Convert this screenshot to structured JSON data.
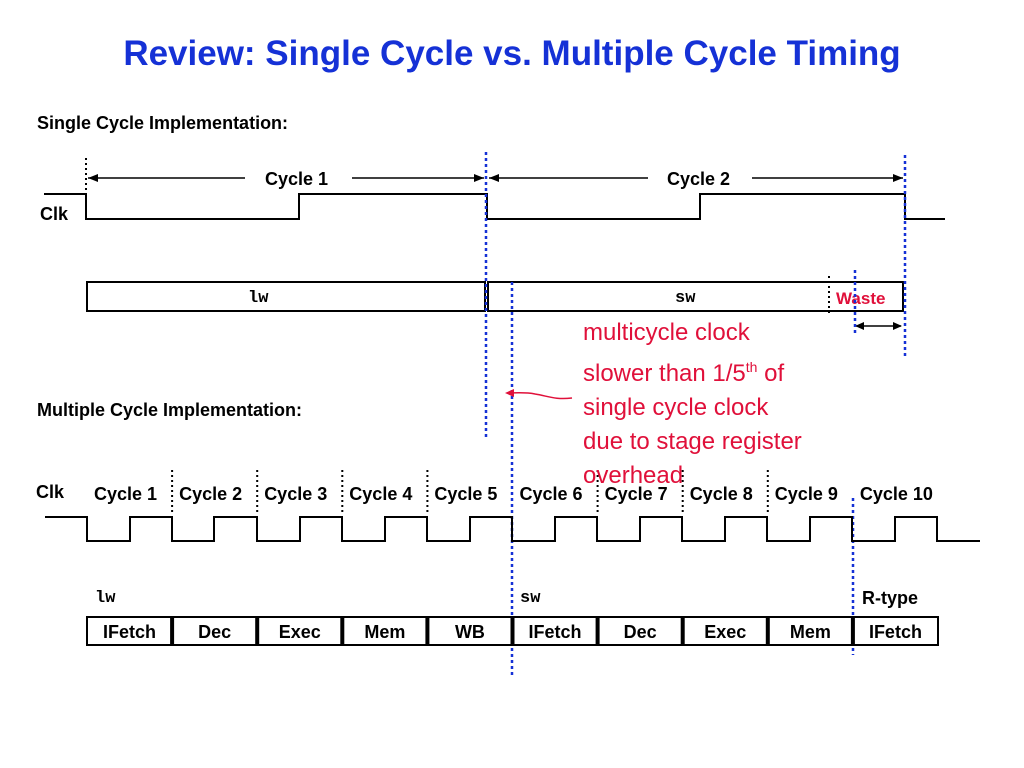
{
  "title": "Review:  Single Cycle vs. Multiple Cycle Timing",
  "single": {
    "heading": "Single Cycle Implementation:",
    "cycle1": "Cycle 1",
    "cycle2": "Cycle 2",
    "clk": "Clk",
    "lw": "lw",
    "sw": "sw",
    "waste": "Waste"
  },
  "note": {
    "line1": "multicycle clock",
    "line2_a": "slower than 1/5",
    "line2_sup": "th",
    "line2_b": " of",
    "line3": "single cycle clock",
    "line4": "due to stage register",
    "line5": "overhead"
  },
  "multi": {
    "heading": "Multiple Cycle Implementation:",
    "clk": "Clk",
    "cycles": [
      "Cycle 1",
      "Cycle 2",
      "Cycle 3",
      "Cycle 4",
      "Cycle 5",
      "Cycle 6",
      "Cycle 7",
      "Cycle 8",
      "Cycle 9",
      "Cycle 10"
    ],
    "instr": [
      "lw",
      "sw",
      "R-type"
    ],
    "stages": [
      "IFetch",
      "Dec",
      "Exec",
      "Mem",
      "WB",
      "IFetch",
      "Dec",
      "Exec",
      "Mem",
      "IFetch"
    ]
  },
  "colors": {
    "title": "#1531d6",
    "accent_red": "#e0103a",
    "marker_blue": "#1531d6"
  }
}
